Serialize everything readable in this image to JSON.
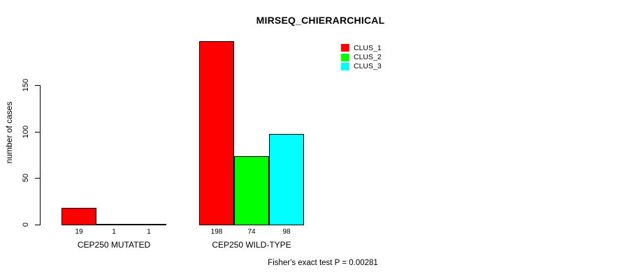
{
  "chart_data": {
    "type": "bar",
    "title": "MIRSEQ_CHIERARCHICAL",
    "xlabel": "",
    "ylabel": "number of cases",
    "ylim": [
      0,
      150
    ],
    "yticks": [
      0,
      50,
      100,
      150
    ],
    "grid": false,
    "legend_position": "top-right",
    "categories": [
      "CEP250 MUTATED",
      "CEP250 WILD-TYPE"
    ],
    "series": [
      {
        "name": "CLUS_1",
        "color": "#ff0000",
        "values": [
          19,
          198
        ]
      },
      {
        "name": "CLUS_2",
        "color": "#00ff00",
        "values": [
          1,
          74
        ]
      },
      {
        "name": "CLUS_3",
        "color": "#00ffff",
        "values": [
          1,
          98
        ]
      }
    ],
    "annotation": "Fisher's exact test P = 0.00281"
  },
  "colors": {
    "background": "#ffffff",
    "axis": "#000000",
    "bar_border": "#000000",
    "text": "#000000"
  }
}
